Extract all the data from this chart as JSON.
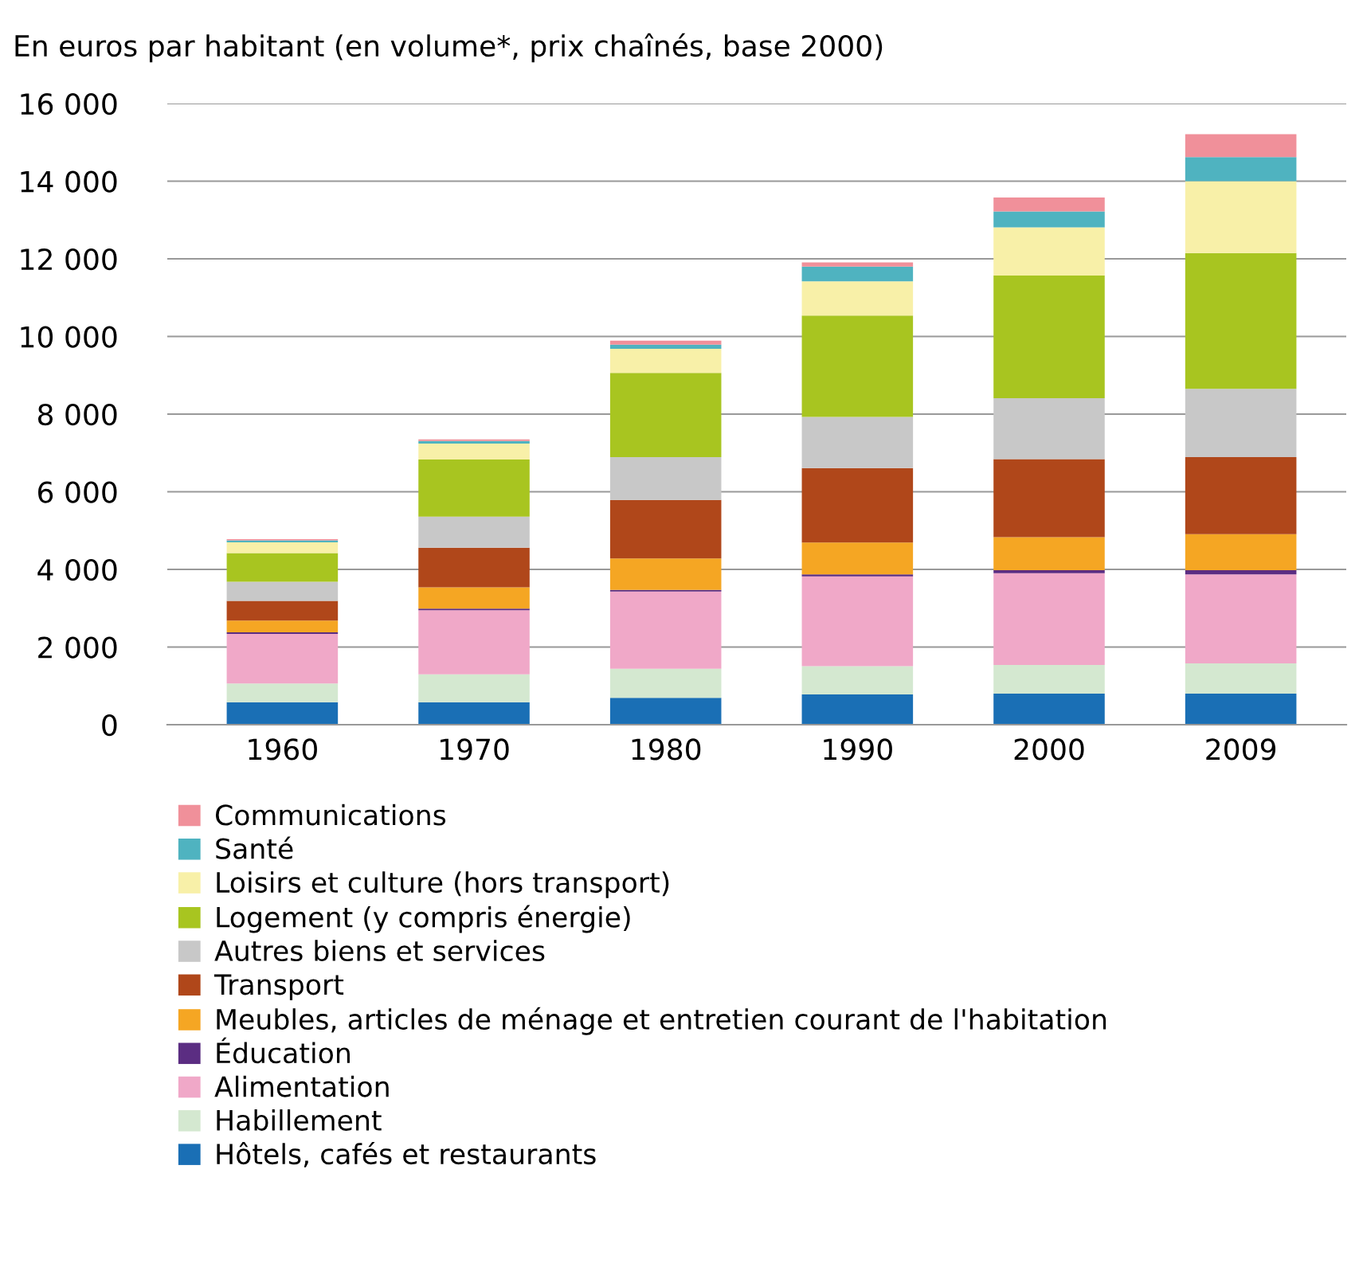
{
  "chart_data": {
    "type": "bar",
    "stacked": true,
    "title": "En euros par habitant (en volume*, prix chaînés, base 2000)",
    "categories": [
      "1960",
      "1970",
      "1980",
      "1990",
      "2000",
      "2009"
    ],
    "ylim": [
      0,
      16000
    ],
    "yticks": [
      0,
      {
        "value": 2000,
        "label": "2 000"
      },
      {
        "value": 4000,
        "label": "4 000"
      },
      {
        "value": 6000,
        "label": "6 000"
      },
      {
        "value": 8000,
        "label": "8 000"
      },
      {
        "value": 10000,
        "label": "10 000"
      },
      {
        "value": 12000,
        "label": "12 000"
      },
      {
        "value": 14000,
        "label": "14 000"
      },
      {
        "value": 16000,
        "label": "16 000"
      }
    ],
    "grid": "y",
    "legend": "bottom",
    "series": [
      {
        "name": "Hôtels, cafés et restaurants",
        "color": "#1a6fb5",
        "values": [
          580,
          580,
          690,
          780,
          800,
          800
        ]
      },
      {
        "name": "Habillement",
        "color": "#d4e8d0",
        "values": [
          480,
          720,
          750,
          730,
          740,
          780
        ]
      },
      {
        "name": "Alimentation",
        "color": "#f0a8c8",
        "values": [
          1280,
          1650,
          1990,
          2310,
          2360,
          2290
        ]
      },
      {
        "name": "Éducation",
        "color": "#5b2d82",
        "values": [
          40,
          40,
          40,
          50,
          80,
          110
        ]
      },
      {
        "name": "Meubles, articles de ménage et entretien courant de l'habitation",
        "color": "#f5a623",
        "values": [
          300,
          550,
          810,
          820,
          850,
          930
        ]
      },
      {
        "name": "Transport",
        "color": "#b0471a",
        "values": [
          510,
          1020,
          1510,
          1920,
          2010,
          1980
        ]
      },
      {
        "name": "Autres biens et services",
        "color": "#c8c8c8",
        "values": [
          490,
          800,
          1100,
          1320,
          1570,
          1760
        ]
      },
      {
        "name": "Logement (y compris énergie)",
        "color": "#a8c520",
        "values": [
          740,
          1470,
          2170,
          2610,
          3160,
          3500
        ]
      },
      {
        "name": "Loisirs et culture (hors transport)",
        "color": "#f8f0a8",
        "values": [
          280,
          410,
          620,
          880,
          1240,
          1850
        ]
      },
      {
        "name": "Santé",
        "color": "#4fb3c0",
        "values": [
          50,
          70,
          110,
          380,
          410,
          620
        ]
      },
      {
        "name": "Communications",
        "color": "#f0909a",
        "values": [
          30,
          40,
          100,
          110,
          360,
          590
        ]
      }
    ]
  }
}
